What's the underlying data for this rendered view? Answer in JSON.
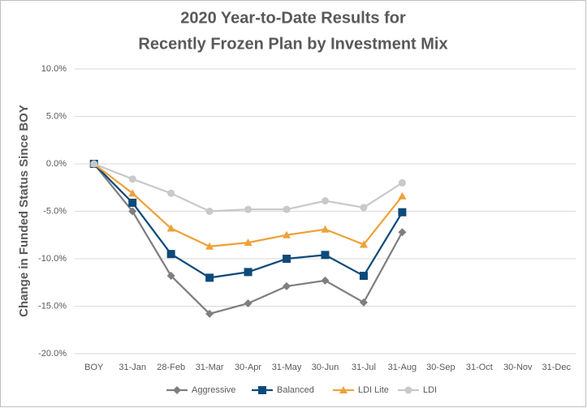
{
  "chart_data": {
    "type": "line",
    "title": [
      "2020 Year-to-Date Results for",
      "Recently Frozen Plan by Investment Mix"
    ],
    "y_label": "Change in Funded Status Since BOY",
    "categories": [
      "BOY",
      "31-Jan",
      "28-Feb",
      "31-Mar",
      "30-Apr",
      "31-May",
      "30-Jun",
      "31-Jul",
      "31-Aug",
      "30-Sep",
      "31-Oct",
      "30-Nov",
      "31-Dec"
    ],
    "series": [
      {
        "name": "Aggressive",
        "color": "#7f7f7f",
        "marker": "diamond",
        "values": [
          0,
          -5.0,
          -11.8,
          -15.8,
          -14.7,
          -12.9,
          -12.3,
          -14.6,
          -7.2,
          null,
          null,
          null,
          null
        ]
      },
      {
        "name": "Balanced",
        "color": "#0e4a7a",
        "marker": "square",
        "values": [
          0,
          -4.1,
          -9.5,
          -12.0,
          -11.4,
          -10.0,
          -9.6,
          -11.8,
          -5.1,
          null,
          null,
          null,
          null
        ]
      },
      {
        "name": "LDI Lite",
        "color": "#eea23a",
        "marker": "triangle",
        "values": [
          0,
          -3.1,
          -6.8,
          -8.7,
          -8.3,
          -7.5,
          -6.9,
          -8.5,
          -3.4,
          null,
          null,
          null,
          null
        ]
      },
      {
        "name": "LDI",
        "color": "#c9c9c9",
        "marker": "circle",
        "values": [
          0,
          -1.6,
          -3.1,
          -5.0,
          -4.8,
          -4.8,
          -3.9,
          -4.6,
          -2.0,
          null,
          null,
          null,
          null
        ]
      }
    ],
    "ylim": [
      -20,
      10
    ],
    "yticks": [
      {
        "value": -20,
        "label": "-20.0%"
      },
      {
        "value": -15,
        "label": "-15.0%"
      },
      {
        "value": -10,
        "label": "-10.0%"
      },
      {
        "value": -5,
        "label": "-5.0%"
      },
      {
        "value": 0,
        "label": "0.0%"
      },
      {
        "value": 5,
        "label": "5.0%"
      },
      {
        "value": 10,
        "label": "10.0%"
      }
    ],
    "grid": true,
    "legend": "bottom"
  }
}
